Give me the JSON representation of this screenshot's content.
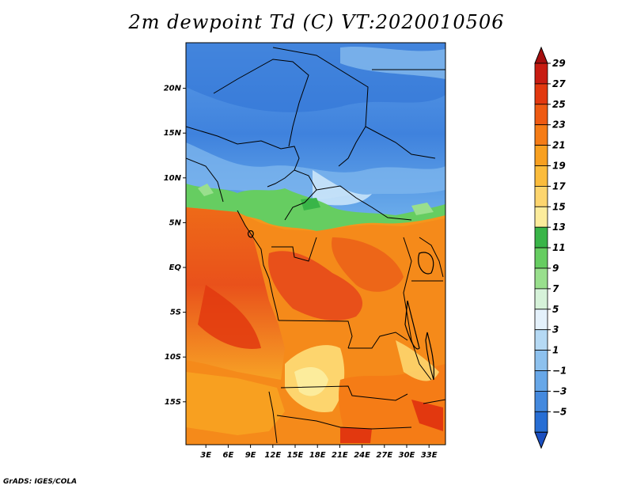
{
  "title": "2m dewpoint Td (C) VT:2020010506",
  "credit": "GrADS: IGES/COLA",
  "map": {
    "lat_ticks": [
      {
        "value": 20,
        "label": "20N"
      },
      {
        "value": 15,
        "label": "15N"
      },
      {
        "value": 10,
        "label": "10N"
      },
      {
        "value": 5,
        "label": "5N"
      },
      {
        "value": 0,
        "label": "EQ"
      },
      {
        "value": -5,
        "label": "5S"
      },
      {
        "value": -10,
        "label": "10S"
      },
      {
        "value": -15,
        "label": "15S"
      }
    ],
    "lon_ticks": [
      {
        "value": 3,
        "label": "3E"
      },
      {
        "value": 6,
        "label": "6E"
      },
      {
        "value": 9,
        "label": "9E"
      },
      {
        "value": 12,
        "label": "12E"
      },
      {
        "value": 15,
        "label": "15E"
      },
      {
        "value": 18,
        "label": "18E"
      },
      {
        "value": 21,
        "label": "21E"
      },
      {
        "value": 24,
        "label": "24E"
      },
      {
        "value": 27,
        "label": "27E"
      },
      {
        "value": 30,
        "label": "30E"
      },
      {
        "value": 33,
        "label": "33E"
      }
    ]
  },
  "colorbar": {
    "labels": [
      "29",
      "27",
      "25",
      "23",
      "21",
      "19",
      "17",
      "15",
      "13",
      "11",
      "9",
      "7",
      "5",
      "3",
      "1",
      "−1",
      "−3",
      "−5"
    ],
    "colors": [
      "#a50f0f",
      "#c81c12",
      "#e2380f",
      "#ee5a12",
      "#f57c16",
      "#f8a020",
      "#fbbc3c",
      "#fdd56e",
      "#fcec9c",
      "#39b548",
      "#66cd61",
      "#99df8d",
      "#d6f2d9",
      "#e4f1fb",
      "#b5d9f4",
      "#8dc1ee",
      "#67a7e8",
      "#4489de",
      "#276ed4",
      "#1b4fc0"
    ]
  }
}
